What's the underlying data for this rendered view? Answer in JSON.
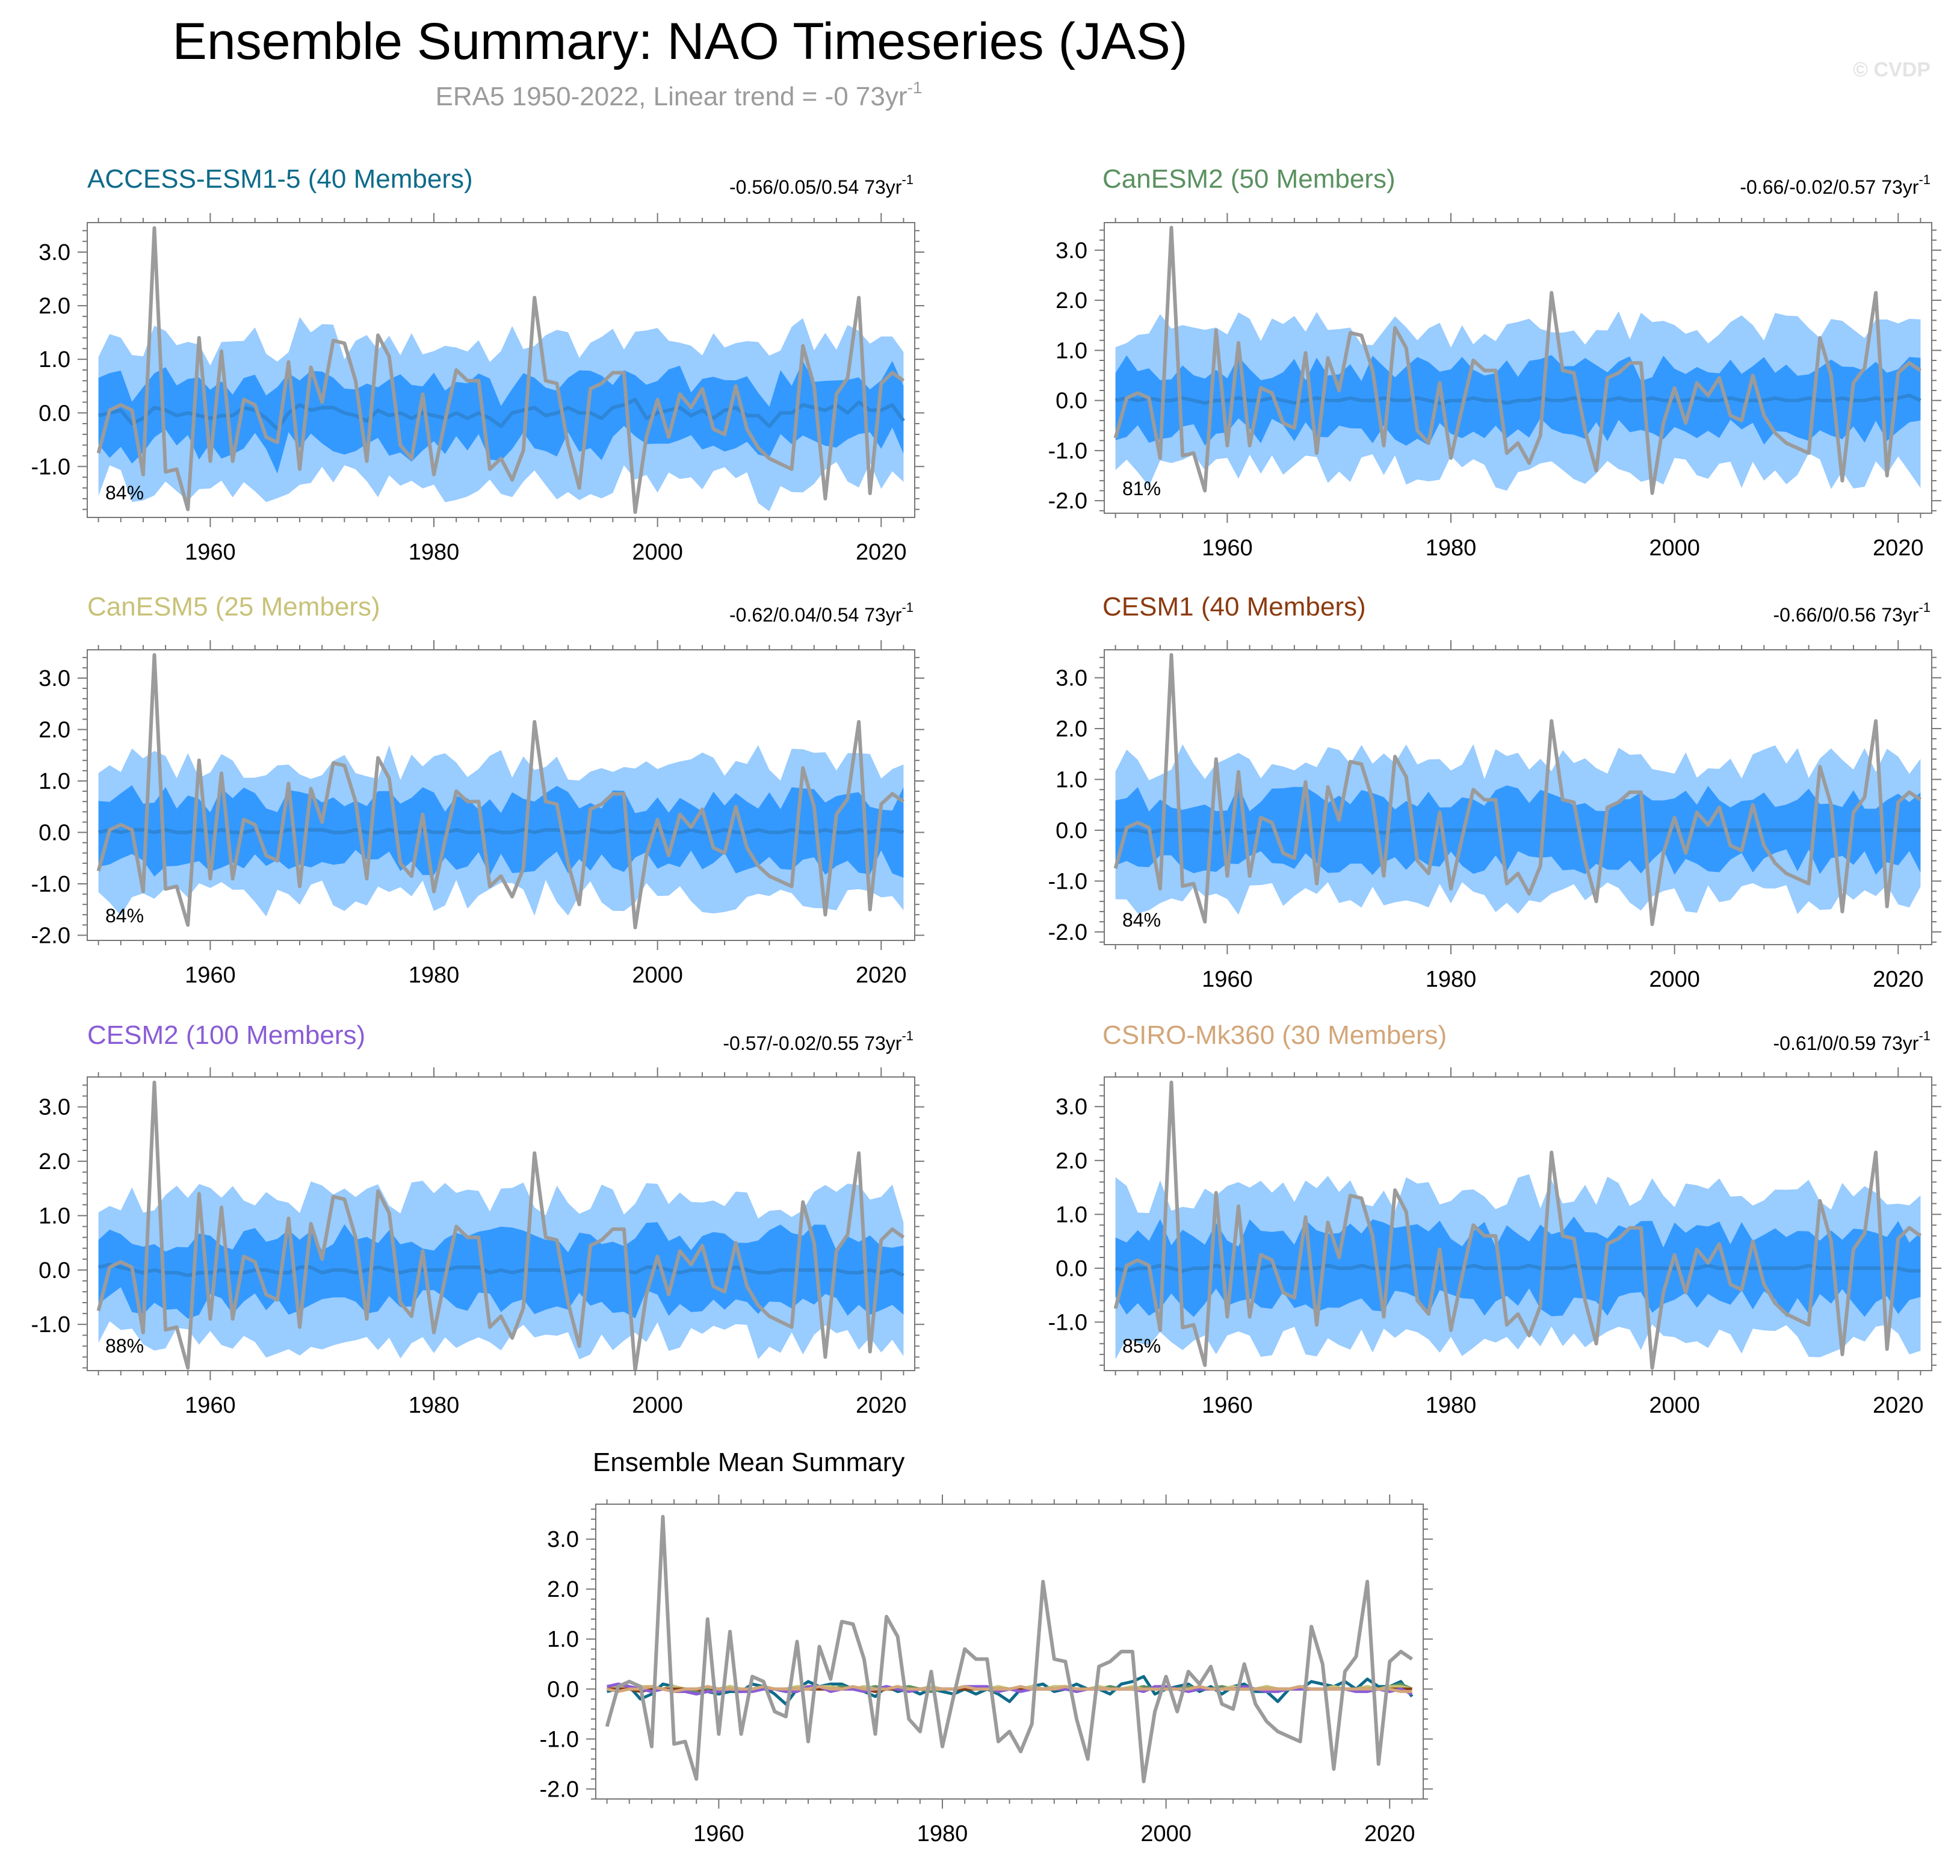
{
  "title": "Ensemble Summary: NAO Timeseries (JAS)",
  "subtitle_text": "ERA5 1950-2022, Linear trend = -0 73yr",
  "subtitle_sup": "-1",
  "copyright": "© CVDP",
  "colors": {
    "obs_line": "#9b9b9b",
    "outer_band": "#99ccff",
    "inner_band": "#3399ff",
    "mean_line": "#2e86d8",
    "axis": "#000000",
    "access": "#0e6b8a",
    "canesm2": "#5a9160",
    "canesm5": "#c8c278",
    "cesm1": "#8b3a0f",
    "cesm2": "#8a5cd6",
    "csiro": "#d3a679"
  },
  "chart_data": {
    "type": "line",
    "xlim": [
      1949,
      2023
    ],
    "xticks": [
      1960,
      1980,
      2000,
      2020
    ],
    "xtick_labels": [
      "1960",
      "1980",
      "2000",
      "2020"
    ],
    "observed_series": {
      "name": "ERA5",
      "years": [
        1950,
        1951,
        1952,
        1953,
        1954,
        1955,
        1956,
        1957,
        1958,
        1959,
        1960,
        1961,
        1962,
        1963,
        1964,
        1965,
        1966,
        1967,
        1968,
        1969,
        1970,
        1971,
        1972,
        1973,
        1974,
        1975,
        1976,
        1977,
        1978,
        1979,
        1980,
        1981,
        1982,
        1983,
        1984,
        1985,
        1986,
        1987,
        1988,
        1989,
        1990,
        1991,
        1992,
        1993,
        1994,
        1995,
        1996,
        1997,
        1998,
        1999,
        2000,
        2001,
        2002,
        2003,
        2004,
        2005,
        2006,
        2007,
        2008,
        2009,
        2010,
        2011,
        2012,
        2013,
        2014,
        2015,
        2016,
        2017,
        2018,
        2019,
        2020,
        2021,
        2022
      ],
      "values": [
        -0.75,
        0.05,
        0.15,
        0.05,
        -1.15,
        3.45,
        -1.1,
        -1.05,
        -1.8,
        1.4,
        -0.9,
        1.15,
        -0.9,
        0.25,
        0.15,
        -0.45,
        -0.55,
        0.95,
        -1.05,
        0.85,
        0.2,
        1.35,
        1.3,
        0.6,
        -0.9,
        1.45,
        1.05,
        -0.6,
        -0.85,
        0.35,
        -1.15,
        -0.15,
        0.8,
        0.6,
        0.6,
        -1.05,
        -0.85,
        -1.25,
        -0.7,
        2.15,
        0.6,
        0.55,
        -0.6,
        -1.4,
        0.45,
        0.55,
        0.75,
        0.75,
        -1.85,
        -0.45,
        0.25,
        -0.45,
        0.35,
        0.1,
        0.45,
        -0.3,
        -0.4,
        0.5,
        -0.3,
        -0.65,
        -0.85,
        -0.95,
        -1.05,
        1.25,
        0.5,
        -1.6,
        0.35,
        0.65,
        2.15,
        -1.5,
        0.55,
        0.75,
        0.6
      ]
    },
    "model_means": [
      {
        "name": "ACCESS-ESM1-5",
        "color_key": "access",
        "values": [
          -0.05,
          0,
          0.05,
          -0.2,
          -0.1,
          0.1,
          0.05,
          -0.05,
          0,
          -0.05,
          -0.1,
          -0.05,
          -0.05,
          0.1,
          0.05,
          -0.1,
          -0.3,
          0,
          0.15,
          0.05,
          0.1,
          0.1,
          0,
          -0.05,
          -0.15,
          0.05,
          -0.05,
          0,
          -0.1,
          0,
          -0.05,
          -0.1,
          0,
          -0.1,
          0,
          -0.1,
          -0.25,
          0,
          0.05,
          0.1,
          -0.05,
          0,
          0.1,
          0,
          0,
          -0.1,
          0.1,
          0.15,
          0.25,
          -0.1,
          0,
          0.05,
          0.1,
          -0.05,
          0.05,
          -0.1,
          0.05,
          0.1,
          -0.05,
          -0.05,
          -0.25,
          0,
          0,
          0.15,
          0.1,
          0.05,
          0.15,
          0,
          0.2,
          0.05,
          0.05,
          0.15,
          -0.15
        ]
      },
      {
        "name": "CanESM2",
        "color_key": "canesm2",
        "values": [
          0,
          0.05,
          0,
          0.05,
          0,
          0,
          0.05,
          0,
          -0.05,
          0,
          0,
          0.05,
          0,
          0,
          0.05,
          0,
          -0.05,
          0,
          0.05,
          0,
          0,
          0.05,
          0,
          0,
          0.05,
          0,
          0,
          0.05,
          0,
          -0.05,
          0,
          0,
          0.05,
          0,
          0,
          -0.05,
          0,
          0,
          0.05,
          0,
          0,
          0.05,
          0,
          0,
          0,
          0.05,
          0,
          0,
          0.05,
          0,
          0,
          0,
          0.05,
          0,
          0,
          0.05,
          0,
          0,
          0,
          0.05,
          0,
          0,
          0.05,
          0,
          0,
          0.05,
          0,
          0,
          0.05,
          0,
          0.05,
          0.1,
          0
        ]
      },
      {
        "name": "CanESM5",
        "color_key": "canesm5",
        "values": [
          0,
          0.05,
          0,
          0.05,
          0.05,
          0,
          0.05,
          0,
          0,
          0.05,
          0,
          0.05,
          0,
          0,
          0.05,
          0,
          0,
          0.05,
          0.05,
          0.05,
          0.05,
          0,
          0,
          0.05,
          0,
          0,
          0.05,
          0,
          0,
          0.05,
          0,
          0,
          0.05,
          0,
          0,
          0.05,
          0,
          0,
          0.05,
          0,
          0.05,
          0.05,
          0,
          0,
          0.05,
          0,
          0,
          0.05,
          0,
          0,
          0.05,
          0,
          0,
          0.05,
          0,
          0,
          0.05,
          0,
          0,
          0.05,
          0,
          0,
          0.05,
          0,
          0,
          0.05,
          0,
          0,
          0.05,
          0,
          0.05,
          0.05,
          0
        ]
      },
      {
        "name": "CESM1",
        "color_key": "cesm1",
        "values": [
          0,
          0,
          0,
          -0.05,
          0,
          0,
          0,
          0,
          0,
          -0.05,
          0,
          0,
          -0.05,
          0,
          0,
          0,
          0,
          0,
          0,
          0,
          0,
          0,
          0,
          0,
          -0.05,
          0,
          0,
          0,
          0,
          0,
          0,
          0,
          0,
          0,
          0,
          0,
          0,
          0,
          0,
          0,
          0,
          0,
          0,
          0,
          0,
          0,
          0,
          0,
          0,
          0,
          0,
          0,
          0,
          0,
          0,
          0,
          0,
          0,
          0,
          0,
          0,
          0,
          0,
          0,
          0,
          0,
          0,
          0,
          0,
          0,
          0,
          0,
          0
        ]
      },
      {
        "name": "CESM2",
        "color_key": "cesm2",
        "values": [
          0.05,
          0.1,
          0.05,
          0,
          -0.05,
          0,
          -0.05,
          -0.05,
          -0.1,
          -0.05,
          -0.05,
          0,
          -0.05,
          -0.05,
          0,
          0,
          -0.05,
          -0.05,
          0.05,
          0.05,
          -0.05,
          0,
          0,
          -0.05,
          0,
          0.05,
          0,
          -0.05,
          0,
          0,
          0,
          0,
          0.05,
          0.05,
          0.05,
          -0.05,
          0,
          -0.05,
          0,
          0,
          0,
          0,
          -0.05,
          0,
          0,
          0,
          0,
          0,
          -0.05,
          0.05,
          0.05,
          0,
          -0.05,
          0,
          0,
          0,
          0,
          0.05,
          0,
          -0.05,
          -0.05,
          0,
          0,
          0,
          0,
          0,
          0,
          -0.05,
          -0.05,
          0,
          -0.05,
          0,
          -0.1
        ]
      },
      {
        "name": "CSIRO-Mk360",
        "color_key": "csiro",
        "values": [
          0,
          -0.05,
          0,
          0,
          0.05,
          0,
          -0.05,
          0,
          0,
          0.05,
          0,
          0,
          0,
          0,
          0.05,
          0,
          0,
          0,
          0,
          0.05,
          0,
          0,
          0.05,
          0,
          0,
          0,
          0.05,
          0,
          0,
          0,
          0,
          0,
          0.05,
          0,
          0,
          0,
          0,
          0.05,
          0,
          0,
          0,
          0.05,
          0,
          0,
          0,
          0,
          0,
          0,
          0,
          0,
          0,
          0,
          0,
          0.05,
          0,
          0,
          0,
          0,
          0,
          0,
          0,
          0,
          0.05,
          0,
          0,
          0,
          0,
          0,
          0,
          0,
          0,
          -0.05,
          -0.05
        ]
      }
    ],
    "panels": [
      {
        "id": "access",
        "model": "ACCESS-ESM1-5 (40 Members)",
        "color_key": "access",
        "trend_text": "-0.56/0.05/0.54 73yr",
        "trend_sup": "-1",
        "percent": "84%",
        "ylim": [
          -1.95,
          3.55
        ],
        "yticks": [
          -1,
          0,
          1,
          2,
          3
        ],
        "ytick_labels": [
          "-1.0",
          "0.0",
          "1.0",
          "2.0",
          "3.0"
        ],
        "mean_index": 0,
        "outer_amp": 1.35,
        "inner_amp": 0.65
      },
      {
        "id": "canesm2",
        "model": "CanESM2 (50 Members)",
        "color_key": "canesm2",
        "trend_text": "-0.66/-0.02/0.57 73yr",
        "trend_sup": "-1",
        "percent": "81%",
        "ylim": [
          -2.25,
          3.55
        ],
        "yticks": [
          -2,
          -1,
          0,
          1,
          2,
          3
        ],
        "ytick_labels": [
          "-2.0",
          "-1.0",
          "0.0",
          "1.0",
          "2.0",
          "3.0"
        ],
        "mean_index": 1,
        "outer_amp": 1.45,
        "inner_amp": 0.7
      },
      {
        "id": "canesm5",
        "model": "CanESM5 (25 Members)",
        "color_key": "canesm5",
        "trend_text": "-0.62/0.04/0.54 73yr",
        "trend_sup": "-1",
        "percent": "84%",
        "ylim": [
          -2.1,
          3.55
        ],
        "yticks": [
          -2,
          -1,
          0,
          1,
          2,
          3
        ],
        "ytick_labels": [
          "-2.0",
          "-1.0",
          "0.0",
          "1.0",
          "2.0",
          "3.0"
        ],
        "mean_index": 2,
        "outer_amp": 1.35,
        "inner_amp": 0.68
      },
      {
        "id": "cesm1",
        "model": "CESM1 (40 Members)",
        "color_key": "cesm1",
        "trend_text": "-0.66/0/0.56 73yr",
        "trend_sup": "-1",
        "percent": "84%",
        "ylim": [
          -2.25,
          3.55
        ],
        "yticks": [
          -2,
          -1,
          0,
          1,
          2,
          3
        ],
        "ytick_labels": [
          "-2.0",
          "-1.0",
          "0.0",
          "1.0",
          "2.0",
          "3.0"
        ],
        "mean_index": 3,
        "outer_amp": 1.4,
        "inner_amp": 0.68
      },
      {
        "id": "cesm2",
        "model": "CESM2 (100 Members)",
        "color_key": "cesm2",
        "trend_text": "-0.57/-0.02/0.55 73yr",
        "trend_sup": "-1",
        "percent": "88%",
        "ylim": [
          -1.85,
          3.55
        ],
        "yticks": [
          -1,
          0,
          1,
          2,
          3
        ],
        "ytick_labels": [
          "-1.0",
          "0.0",
          "1.0",
          "2.0",
          "3.0"
        ],
        "mean_index": 4,
        "outer_amp": 1.35,
        "inner_amp": 0.65
      },
      {
        "id": "csiro",
        "model": "CSIRO-Mk360 (30 Members)",
        "color_key": "csiro",
        "trend_text": "-0.61/0/0.59 73yr",
        "trend_sup": "-1",
        "percent": "85%",
        "ylim": [
          -1.9,
          3.55
        ],
        "yticks": [
          -1,
          0,
          1,
          2,
          3
        ],
        "ytick_labels": [
          "-1.0",
          "0.0",
          "1.0",
          "2.0",
          "3.0"
        ],
        "mean_index": 5,
        "outer_amp": 1.4,
        "inner_amp": 0.7
      }
    ],
    "summary_panel": {
      "title": "Ensemble Mean Summary",
      "ylim": [
        -2.2,
        3.7
      ],
      "yticks": [
        -2,
        -1,
        0,
        1,
        2,
        3
      ],
      "ytick_labels": [
        "-2.0",
        "-1.0",
        "0.0",
        "1.0",
        "2.0",
        "3.0"
      ]
    }
  }
}
